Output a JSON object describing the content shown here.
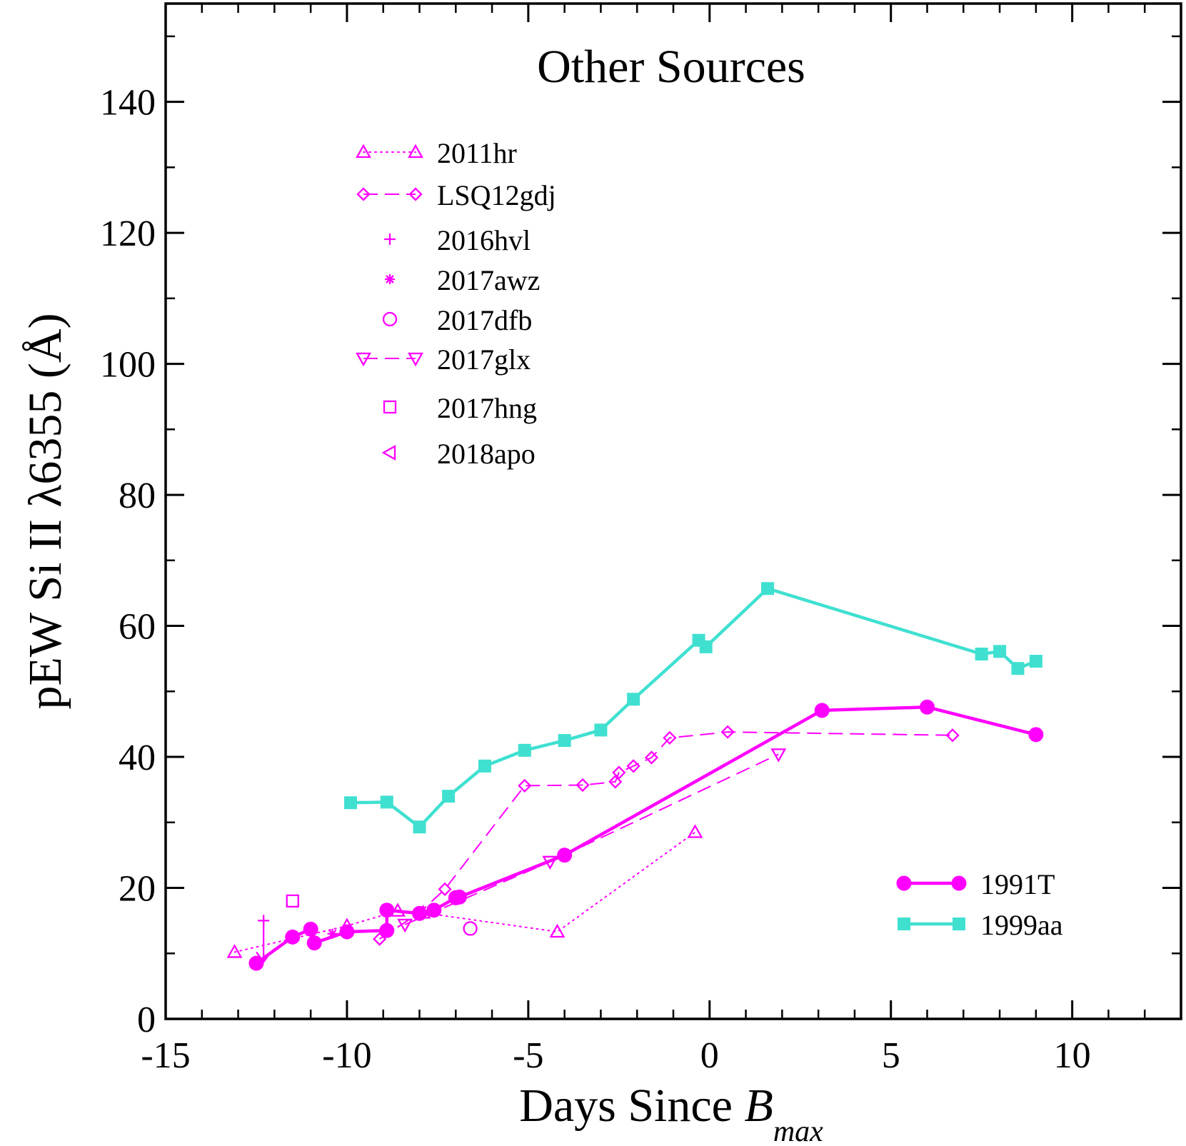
{
  "chart_data": {
    "type": "line",
    "title": "Other Sources",
    "xlabel": "Days Since ",
    "xlabel_italic": "B",
    "xlabel_sub": "max",
    "ylabel": "pEW Si II λ6355 (Å)",
    "xlim": [
      -15,
      13
    ],
    "ylim": [
      0,
      155
    ],
    "xticks": [
      -15,
      -10,
      -5,
      0,
      5,
      10
    ],
    "xtick_labels": [
      "-15",
      "-10",
      "-5",
      "0",
      "5",
      "10"
    ],
    "yticks": [
      0,
      20,
      40,
      60,
      80,
      100,
      120,
      140
    ],
    "ytick_labels": [
      "0",
      "20",
      "40",
      "60",
      "80",
      "100",
      "120",
      "140"
    ],
    "grid": false,
    "colors": {
      "magenta": "#ff00ff",
      "turquoise": "#40e0d0",
      "axis": "#000000"
    },
    "series": [
      {
        "name": "2011hr",
        "marker": "triangle-up",
        "line": "dotted",
        "legend_group": "top",
        "x": [
          -13.1,
          -10.0,
          -8.6,
          -7.9,
          -4.2,
          -0.4
        ],
        "y": [
          10.2,
          14.2,
          16.5,
          16.2,
          13.3,
          28.5
        ]
      },
      {
        "name": "LSQ12gdj",
        "marker": "diamond",
        "line": "dashed",
        "legend_group": "top",
        "x": [
          -9.1,
          -8.0,
          -7.3,
          -5.1,
          -3.5,
          -2.6,
          -2.5,
          -2.1,
          -1.6,
          -1.1,
          0.5,
          6.7
        ],
        "y": [
          12.2,
          16.2,
          19.8,
          35.6,
          35.7,
          36.2,
          37.6,
          38.6,
          39.9,
          42.9,
          43.8,
          43.3
        ]
      },
      {
        "name": "2016hvl",
        "marker": "plus",
        "line": "none",
        "legend_group": "top",
        "x": [
          -12.3
        ],
        "y": [
          15.0
        ],
        "upper_limit": true
      },
      {
        "name": "2017awz",
        "marker": "asterisk",
        "line": "none",
        "legend_group": "top",
        "x": [
          -10.4
        ],
        "y": [
          13.0
        ]
      },
      {
        "name": "2017dfb",
        "marker": "circle-open",
        "line": "none",
        "legend_group": "top",
        "x": [
          -6.6
        ],
        "y": [
          13.8
        ]
      },
      {
        "name": "2017glx",
        "marker": "triangle-down",
        "line": "dashed",
        "legend_group": "top",
        "x": [
          -8.4,
          -4.4,
          1.9
        ],
        "y": [
          14.4,
          24.0,
          40.4
        ]
      },
      {
        "name": "2017hng",
        "marker": "square-open",
        "line": "none",
        "legend_group": "top",
        "x": [
          -11.5
        ],
        "y": [
          18.0
        ]
      },
      {
        "name": "2018apo",
        "marker": "triangle-left",
        "line": "none",
        "legend_group": "top",
        "x": [],
        "y": []
      },
      {
        "name": "1991T",
        "marker": "circle-filled",
        "line": "solid",
        "color": "magenta",
        "legend_group": "bottom",
        "x": [
          -12.5,
          -11.5,
          -11.0,
          -10.9,
          -10.0,
          -8.9,
          -8.9,
          -8.0,
          -7.6,
          -7.0,
          -6.9,
          -4.0,
          3.1,
          6.0,
          9.0
        ],
        "y": [
          8.5,
          12.5,
          13.7,
          11.6,
          13.3,
          13.5,
          16.6,
          16.1,
          16.6,
          18.5,
          18.6,
          25.0,
          47.1,
          47.6,
          43.4
        ]
      },
      {
        "name": "1999aa",
        "marker": "square-filled",
        "line": "solid",
        "color": "turquoise",
        "legend_group": "bottom",
        "x": [
          -9.9,
          -8.9,
          -8.0,
          -7.2,
          -6.2,
          -5.1,
          -4.0,
          -3.0,
          -2.1,
          -0.3,
          -0.1,
          1.6,
          7.5,
          8.0,
          8.5,
          9.0
        ],
        "y": [
          33.0,
          33.1,
          29.3,
          34.0,
          38.6,
          41.0,
          42.5,
          44.1,
          48.8,
          57.8,
          56.8,
          65.7,
          55.7,
          56.1,
          53.5,
          54.6
        ]
      }
    ]
  }
}
